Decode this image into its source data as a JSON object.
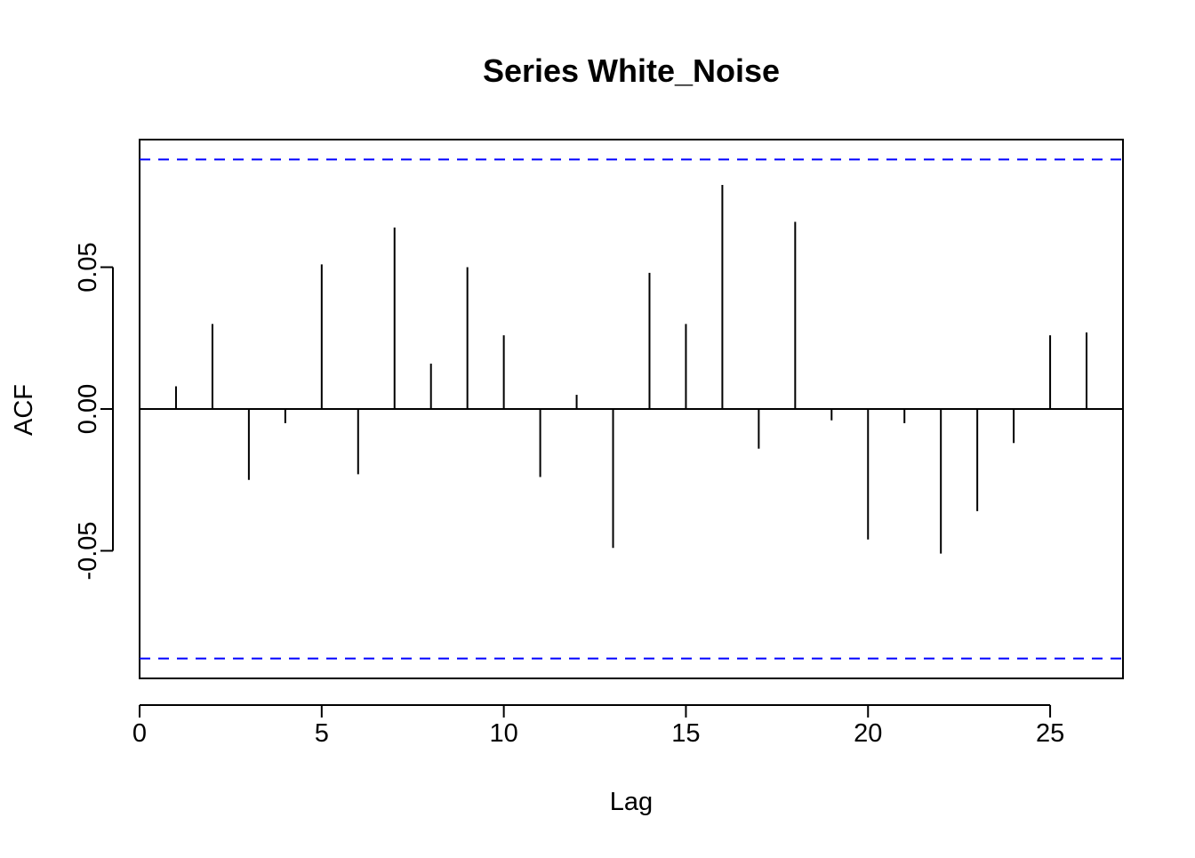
{
  "chart_data": {
    "type": "bar",
    "title": "Series White_Noise",
    "xlabel": "Lag",
    "ylabel": "ACF",
    "xlim": [
      0,
      27
    ],
    "ylim": [
      -0.095,
      0.095
    ],
    "x_ticks": [
      0,
      5,
      10,
      15,
      20,
      25
    ],
    "x_tick_labels": [
      "0",
      "5",
      "10",
      "15",
      "20",
      "25"
    ],
    "y_ticks": [
      -0.05,
      0.0,
      0.05
    ],
    "y_tick_labels": [
      "-0.05",
      "0.00",
      "0.05"
    ],
    "grid": false,
    "legend": "none",
    "confidence_bound": 0.088,
    "colors": {
      "bars": "#000000",
      "confidence": "#0000ff",
      "zero_line": "#000000"
    },
    "series": [
      {
        "lags": [
          1,
          2,
          3,
          4,
          5,
          6,
          7,
          8,
          9,
          10,
          11,
          12,
          13,
          14,
          15,
          16,
          17,
          18,
          19,
          20,
          21,
          22,
          23,
          24,
          25,
          26
        ],
        "values": [
          0.008,
          0.03,
          -0.025,
          -0.005,
          0.051,
          -0.023,
          0.064,
          0.016,
          0.05,
          0.026,
          -0.024,
          0.005,
          -0.049,
          0.048,
          0.03,
          0.079,
          -0.014,
          0.066,
          -0.004,
          -0.046,
          -0.005,
          -0.051,
          -0.036,
          -0.012,
          0.026,
          0.027
        ]
      }
    ]
  }
}
